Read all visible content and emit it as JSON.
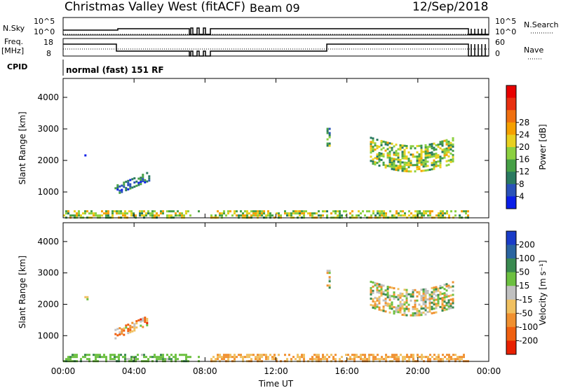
{
  "header": {
    "station": "Christmas Valley West (fitACF)",
    "beam": "Beam 09",
    "date": "12/Sep/2018"
  },
  "summary": {
    "nsky_label": "N.Sky",
    "nsky_ticks": [
      "10^5",
      "10^0"
    ],
    "nsearch_label": "N.Search",
    "freq_label": [
      "Freq.",
      "[MHz]"
    ],
    "freq_ticks": [
      "18",
      "8"
    ],
    "nave_label": "Nave",
    "nave_ticks": [
      "60",
      "0"
    ],
    "cpid_label": "CPID",
    "cpid_text": "normal (fast) 151 RF"
  },
  "chart_data": [
    {
      "type": "heatmap",
      "name": "power",
      "ylabel": "Slant Range [km]",
      "xlabel": "",
      "y_ticks": [
        "1000",
        "2000",
        "3000",
        "4000"
      ],
      "ylim": [
        180,
        4600
      ],
      "colorbar": {
        "label": "Power [dB]",
        "ticks": [
          "4",
          "8",
          "12",
          "16",
          "20",
          "24",
          "28"
        ],
        "colors": [
          "#0a1ee8",
          "#2a52b8",
          "#2a7a60",
          "#46a046",
          "#8cd040",
          "#e8d020",
          "#f5a000",
          "#f07010",
          "#e83010",
          "#e80000"
        ]
      },
      "regions": [
        {
          "t0": 1.2,
          "t1": 1.35,
          "r0": 2190,
          "r1": 2260,
          "level": 0.05
        },
        {
          "t0": 2.9,
          "t1": 4.8,
          "r0": 900,
          "r1": 1350,
          "level": 0.25,
          "slope": 320
        },
        {
          "t0": 14.85,
          "t1": 15.05,
          "r0": 2450,
          "r1": 3100,
          "level": 0.45
        },
        {
          "t0": 17.3,
          "t1": 22.0,
          "r0": 1800,
          "r1": 2750,
          "level": 0.55
        },
        {
          "t0": 0.0,
          "t1": 22.8,
          "r0": 200,
          "r1": 420,
          "level": 0.6
        }
      ]
    },
    {
      "type": "heatmap",
      "name": "velocity",
      "ylabel": "Slant Range [km]",
      "xlabel": "Time UT",
      "x_ticks": [
        "00:00",
        "04:00",
        "08:00",
        "12:00",
        "16:00",
        "20:00",
        "00:00"
      ],
      "y_ticks": [
        "1000",
        "2000",
        "3000",
        "4000"
      ],
      "ylim": [
        180,
        4600
      ],
      "colorbar": {
        "label": "Velocity [m s⁻¹]",
        "ticks": [
          "200",
          "100",
          "50",
          "15",
          "-15",
          "-50",
          "-100",
          "-200"
        ],
        "colors": [
          "#1a3cc8",
          "#2a64a0",
          "#3a8a50",
          "#6cc040",
          "#c0c0c0",
          "#f0c060",
          "#f09030",
          "#f06010",
          "#e82000"
        ]
      },
      "regions": [
        {
          "t0": 1.2,
          "t1": 1.35,
          "r0": 2190,
          "r1": 2260,
          "level": 0.5
        },
        {
          "t0": 2.9,
          "t1": 4.8,
          "r0": 900,
          "r1": 1350,
          "level": 0.65
        },
        {
          "t0": 14.85,
          "t1": 15.05,
          "r0": 2450,
          "r1": 3100,
          "level": 0.5
        },
        {
          "t0": 17.3,
          "t1": 22.0,
          "r0": 1800,
          "r1": 2750,
          "level": 0.5
        },
        {
          "t0": 0.0,
          "t1": 22.8,
          "r0": 200,
          "r1": 420,
          "level": 0.35
        }
      ]
    }
  ]
}
